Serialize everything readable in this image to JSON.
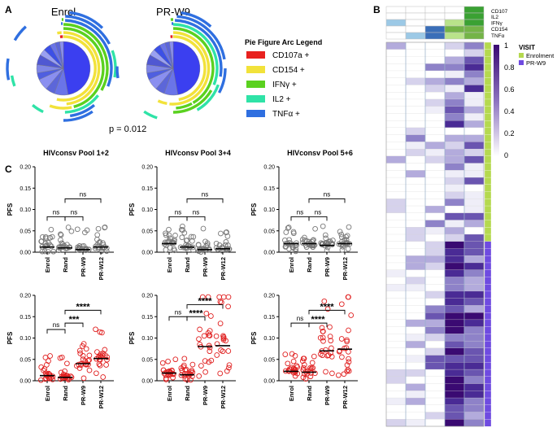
{
  "panel_labels": {
    "a": "A",
    "b": "B",
    "c": "C"
  },
  "panel_a": {
    "pies": [
      {
        "title": "Enrol"
      },
      {
        "title": "PR-W9"
      }
    ],
    "legend": {
      "title": "Pie Figure Arc Legend",
      "items": [
        {
          "label": "CD107a +",
          "color": "#e8211e"
        },
        {
          "label": "CD154 +",
          "color": "#f2e23a"
        },
        {
          "label": "IFNγ +",
          "color": "#5ad11f"
        },
        {
          "label": "IL2 +",
          "color": "#2fe3a7"
        },
        {
          "label": "TNFα +",
          "color": "#2f6fe0"
        }
      ]
    },
    "p_value": "p = 0.012"
  },
  "panel_b": {
    "top_labels": [
      "CD107",
      "IL2",
      "IFNγ",
      "CD154",
      "TNFα"
    ],
    "scale_max": "1",
    "scale_ticks": [
      "0.8",
      "0.6",
      "0.4",
      "0.2",
      "0"
    ],
    "visit_title": "VISIT",
    "visit_items": [
      {
        "label": "Enrolment",
        "color": "#b5d94f"
      },
      {
        "label": "PR-W9",
        "color": "#6f4be0"
      }
    ]
  },
  "chart_data": [
    {
      "type": "scatter",
      "title": "HIVconsv Pool 1+2",
      "ylabel": "PFS",
      "ylim": [
        0,
        0.2
      ],
      "yticks": [
        "0.20",
        "0.15",
        "0.10",
        "0.05",
        "0.00"
      ],
      "categories": [
        "Enrol",
        "Rand",
        "PR-W9",
        "PR-W12"
      ],
      "medians": [
        0.012,
        0.01,
        0.006,
        0.012
      ],
      "comparisons": [
        "ns",
        "ns",
        "ns"
      ],
      "color": "#777777"
    },
    {
      "type": "scatter",
      "title": "HIVconsv Pool 3+4",
      "ylabel": "PFS",
      "ylim": [
        0,
        0.2
      ],
      "yticks": [
        "0.20",
        "0.15",
        "0.10",
        "0.05",
        "0.00"
      ],
      "categories": [
        "Enrol",
        "Rand",
        "PR-W9",
        "PR-W12"
      ],
      "medians": [
        0.02,
        0.012,
        0.006,
        0.008
      ],
      "comparisons": [
        "ns",
        "ns",
        "ns"
      ],
      "color": "#777777"
    },
    {
      "type": "scatter",
      "title": "HIVconsv Pool 5+6",
      "ylabel": "PFS",
      "ylim": [
        0,
        0.2
      ],
      "yticks": [
        "0.20",
        "0.15",
        "0.10",
        "0.05",
        "0.00"
      ],
      "categories": [
        "Enrol",
        "Rand",
        "PR-W9",
        "PR-W12"
      ],
      "medians": [
        0.02,
        0.02,
        0.016,
        0.02
      ],
      "comparisons": [
        "ns",
        "ns",
        "ns"
      ],
      "color": "#777777"
    },
    {
      "type": "scatter",
      "title": "",
      "ylabel": "PFS",
      "ylim": [
        0,
        0.2
      ],
      "yticks": [
        "0.20",
        "0.15",
        "0.10",
        "0.05",
        "0.00"
      ],
      "categories": [
        "Enrol",
        "Rand",
        "PR-W9",
        "PR-W12"
      ],
      "medians": [
        0.012,
        0.008,
        0.04,
        0.052
      ],
      "comparisons": [
        "ns",
        "***",
        "****"
      ],
      "color": "#e02020"
    },
    {
      "type": "scatter",
      "title": "",
      "ylabel": "PFS",
      "ylim": [
        0,
        0.2
      ],
      "yticks": [
        "0.20",
        "0.15",
        "0.10",
        "0.05",
        "0.00"
      ],
      "categories": [
        "Enrol",
        "Rand",
        "PR-W9",
        "PR-W12"
      ],
      "medians": [
        0.018,
        0.014,
        0.08,
        0.082
      ],
      "comparisons": [
        "ns",
        "****",
        "****"
      ],
      "color": "#e02020"
    },
    {
      "type": "scatter",
      "title": "",
      "ylabel": "PFS",
      "ylim": [
        0,
        0.2
      ],
      "yticks": [
        "0.20",
        "0.15",
        "0.10",
        "0.05",
        "0.00"
      ],
      "categories": [
        "Enrol",
        "Rand",
        "PR-W9",
        "PR-W12"
      ],
      "medians": [
        0.022,
        0.02,
        0.07,
        0.074
      ],
      "comparisons": [
        "ns",
        "****",
        "****"
      ],
      "color": "#e02020"
    }
  ]
}
